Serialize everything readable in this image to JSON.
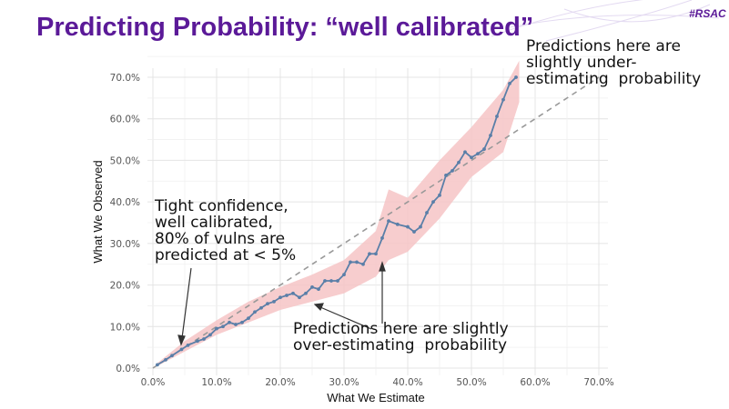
{
  "slide": {
    "title": "Predicting Probability: “well calibrated”",
    "tag": "#RSAC",
    "accent_color": "#5b1a98"
  },
  "annotations": {
    "top_right": "Predictions here are\nslightly under-\nestimating  probability",
    "left": "Tight confidence,\nwell calibrated,\n80% of vulns are\npredicted at < 5%",
    "bottom": "Predictions here are slightly\nover-estimating  probability"
  },
  "chart_data": {
    "type": "line",
    "xlabel": "What We Estimate",
    "ylabel": "What We Observed",
    "xlim": [
      0,
      70
    ],
    "ylim": [
      0,
      70
    ],
    "x_ticks": [
      "0.0%",
      "10.0%",
      "20.0%",
      "30.0%",
      "40.0%",
      "50.0%",
      "60.0%",
      "70.0%"
    ],
    "y_ticks": [
      "0.0%",
      "10.0%",
      "20.0%",
      "30.0%",
      "40.0%",
      "50.0%",
      "60.0%",
      "70.0%"
    ],
    "grid": true,
    "reference_line": {
      "style": "dashed",
      "from": [
        0,
        0
      ],
      "to": [
        70,
        70
      ],
      "color": "#999999"
    },
    "series": [
      {
        "color": "#5a7fa8",
        "x": [
          0.7,
          2,
          3,
          4.5,
          5.5,
          7,
          8,
          9,
          10,
          11,
          12,
          13,
          14,
          15,
          16,
          17,
          18,
          19,
          20,
          21,
          22,
          23,
          24,
          25,
          26,
          27,
          28,
          29,
          30,
          31,
          32,
          33,
          34,
          35,
          36,
          37,
          38.4,
          40,
          41,
          42,
          43,
          44,
          45,
          46,
          47,
          48,
          49,
          50,
          51,
          52,
          53,
          54,
          55,
          56,
          57
        ],
        "y": [
          0.8,
          2,
          3,
          4.5,
          5.5,
          6.5,
          7,
          8,
          9.5,
          10,
          11,
          10.5,
          11,
          12,
          13.5,
          14.5,
          15.5,
          16,
          17,
          17.5,
          18,
          17,
          18,
          19.5,
          19,
          21,
          21,
          21,
          22.5,
          25.5,
          25.5,
          25,
          27.5,
          27.5,
          31.3,
          35.4,
          34.6,
          34,
          32.8,
          34,
          37.4,
          40,
          41.6,
          46.4,
          47.5,
          49.5,
          52,
          50.7,
          51.6,
          52.7,
          56,
          60.6,
          64.6,
          68.5,
          70
        ]
      }
    ],
    "confidence_band": {
      "color": "#f6c4c6",
      "x": [
        0.7,
        5,
        10,
        15,
        20,
        25,
        30,
        35,
        37,
        40,
        45,
        50,
        55,
        57.5
      ],
      "lower": [
        0.5,
        4,
        8,
        11,
        14,
        16,
        18,
        22,
        26,
        28,
        36,
        46,
        52,
        64
      ],
      "upper": [
        1.2,
        6.5,
        11.5,
        16,
        19.5,
        22.5,
        26,
        33,
        43,
        41,
        50,
        58,
        67,
        74
      ]
    }
  }
}
